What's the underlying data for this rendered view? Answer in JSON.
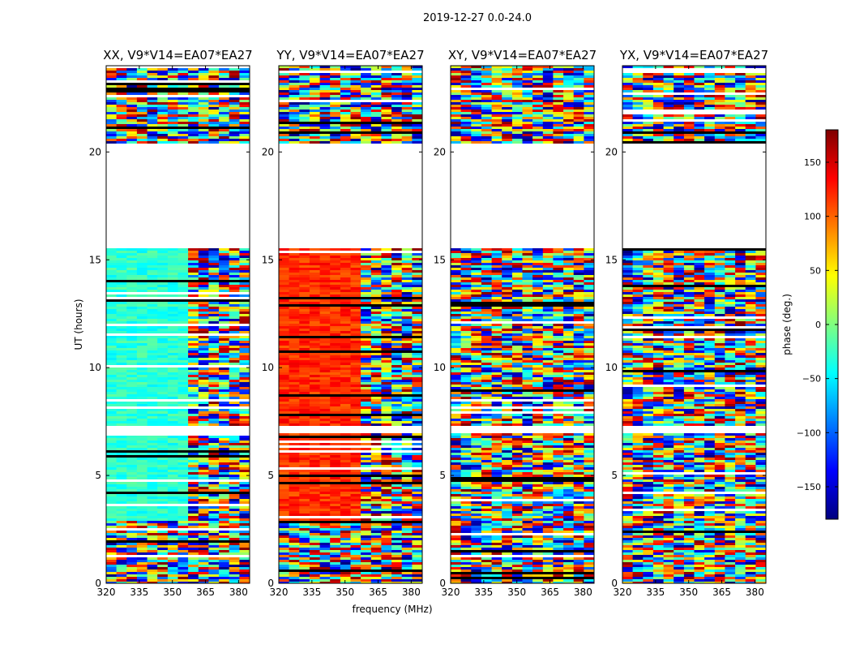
{
  "suptitle": "2019-12-27 0.0-24.0",
  "chart_data": [
    {
      "type": "heatmap",
      "title": "XX, V9*V14=EA07*EA27",
      "ylabel": "UT (hours)",
      "xlim": [
        320,
        385
      ],
      "ylim": [
        0,
        24
      ],
      "xticks": [
        320,
        335,
        350,
        365,
        380
      ],
      "yticks": [
        0,
        5,
        10,
        15,
        20
      ],
      "missing_ut_ranges": [
        [
          20.5,
          15.6
        ],
        [
          7.3,
          7.0
        ]
      ],
      "dominant_phase_deg": -30
    },
    {
      "type": "heatmap",
      "title": "YY, V9*V14=EA07*EA27",
      "xlim": [
        320,
        385
      ],
      "ylim": [
        0,
        24
      ],
      "xticks": [
        320,
        335,
        350,
        365,
        380
      ],
      "yticks": [
        0,
        5,
        10,
        15,
        20
      ],
      "missing_ut_ranges": [
        [
          20.5,
          15.6
        ],
        [
          7.3,
          7.0
        ]
      ],
      "dominant_phase_deg": 120
    },
    {
      "type": "heatmap",
      "title": "XY, V9*V14=EA07*EA27",
      "xlabel": "frequency (MHz)",
      "xlim": [
        320,
        385
      ],
      "ylim": [
        0,
        24
      ],
      "xticks": [
        320,
        335,
        350,
        365,
        380
      ],
      "yticks": [
        0,
        5,
        10,
        15,
        20
      ],
      "missing_ut_ranges": [
        [
          20.5,
          15.6
        ],
        [
          7.3,
          7.0
        ]
      ],
      "dominant_phase_deg": null
    },
    {
      "type": "heatmap",
      "title": "YX, V9*V14=EA07*EA27",
      "xlim": [
        320,
        385
      ],
      "ylim": [
        0,
        24
      ],
      "xticks": [
        320,
        335,
        350,
        365,
        380
      ],
      "yticks": [
        0,
        5,
        10,
        15,
        20
      ],
      "missing_ut_ranges": [
        [
          20.5,
          15.6
        ],
        [
          7.3,
          7.0
        ]
      ],
      "dominant_phase_deg": null
    }
  ],
  "colorbar": {
    "label": "phase (deg.)",
    "range": [
      -180,
      180
    ],
    "ticks": [
      150,
      100,
      50,
      0,
      -50,
      -100,
      -150
    ],
    "tick_labels": [
      "150",
      "100",
      "50",
      "0",
      "−50",
      "−100",
      "−150"
    ],
    "colormap": "jet"
  }
}
